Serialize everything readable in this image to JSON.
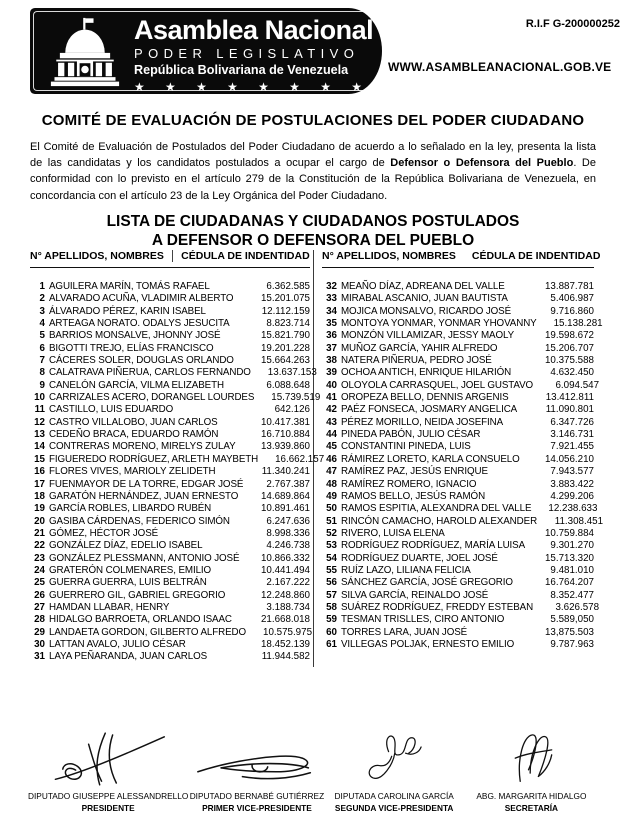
{
  "colors": {
    "banner_bg": "#0a0a0a",
    "banner_text": "#ffffff",
    "text": "#000000"
  },
  "icons": {
    "capitol": "capitol-building",
    "star_glyph": "★",
    "flag_glyph": "⚑"
  },
  "header": {
    "org_name": "Asamblea Nacional",
    "org_subtitle": "PODER LEGISLATIVO",
    "org_country": "República Bolivariana de Venezuela",
    "stars": "★★★★★★★★",
    "rif": "R.I.F G-200000252",
    "website": "WWW.ASAMBLEANACIONAL.GOB.VE"
  },
  "title": "COMITÉ DE EVALUACIÓN DE POSTULACIONES DEL PODER CIUDADANO",
  "intro": {
    "part1": "El Comité de Evaluación de Postulados del Poder Ciudadano de acuerdo a lo señalado en la ley, presenta la lista de las candidatas y los candidatos postulados a ocupar el cargo de ",
    "bold": "Defensor o Defensora del Pueblo",
    "part2": ". De conformidad con lo previsto en el artículo 279 de la Constitución de la República Bolivariana de Venezuela, en concordancia con el artículo 23 de la Ley Orgánica del Poder Ciudadano."
  },
  "list_title": {
    "line1": "LISTA DE CIUDADANAS Y CIUDADANOS POSTULADOS",
    "line2": "A DEFENSOR O DEFENSORA DEL PUEBLO"
  },
  "table": {
    "col_name_header": "N° APELLIDOS, NOMBRES",
    "col_id_header": "CÉDULA DE INDENTIDAD",
    "left_rows": [
      {
        "num": "1",
        "name": "AGUILERA MARÍN, TOMÁS RAFAEL",
        "id": "6.362.585"
      },
      {
        "num": "2",
        "name": "ALVARADO ACUÑA, VLADIMIR ALBERTO",
        "id": "15.201.075"
      },
      {
        "num": "3",
        "name": "ÁLVARADO PÉREZ, KARIN ISABEL",
        "id": "12.112.159"
      },
      {
        "num": "4",
        "name": "ARTEAGA NORATO. ODALYS JESUCITA",
        "id": "8.823.714"
      },
      {
        "num": "5",
        "name": "BARRIOS MONSALVE, JHONNY JOSÉ",
        "id": "15.821.790"
      },
      {
        "num": "6",
        "name": "BIGOTTI TREJO, ELÍAS FRANCISCO",
        "id": "19.201.228"
      },
      {
        "num": "7",
        "name": "CÁCERES SOLER, DOUGLAS ORLANDO",
        "id": "15.664.263"
      },
      {
        "num": "8",
        "name": "CALATRAVA PIÑERUA, CARLOS FERNANDO",
        "id": "13.637.153"
      },
      {
        "num": "9",
        "name": "CANELÓN GARCÍA, VILMA ELIZABETH",
        "id": "6.088.648"
      },
      {
        "num": "10",
        "name": "CARRIZALES ACERO, DORANGEL LOURDES",
        "id": "15.739.519"
      },
      {
        "num": "11",
        "name": "CASTILLO, LUIS EDUARDO",
        "id": "642.126"
      },
      {
        "num": "12",
        "name": "CASTRO VILLALOBO, JUAN CARLOS",
        "id": "10.417.381"
      },
      {
        "num": "13",
        "name": "CEDEÑO BRACA, EDUARDO RAMÓN",
        "id": "16.710.884"
      },
      {
        "num": "14",
        "name": "CONTRERAS MORENO, MIRELYS ZULAY",
        "id": "13.939.860"
      },
      {
        "num": "15",
        "name": "FIGUEREDO RODRÍGUEZ, ARLETH MAYBETH",
        "id": "16.662.157"
      },
      {
        "num": "16",
        "name": "FLORES VIVES, MARIOLY ZELIDETH",
        "id": "11.340.241"
      },
      {
        "num": "17",
        "name": "FUENMAYOR DE LA TORRE, EDGAR JOSÉ",
        "id": "2.767.387"
      },
      {
        "num": "18",
        "name": "GARATÓN HERNÁNDEZ, JUAN ERNESTO",
        "id": "14.689.864"
      },
      {
        "num": "19",
        "name": "GARCÍA ROBLES, LIBARDO RUBÉN",
        "id": "10.891.461"
      },
      {
        "num": "20",
        "name": "GASIBA CÁRDENAS, FEDERICO SIMÓN",
        "id": "6.247.636"
      },
      {
        "num": "21",
        "name": "GÓMEZ, HÉCTOR JOSÉ",
        "id": "8.998.336"
      },
      {
        "num": "22",
        "name": "GONZÁLEZ DÍAZ, EDELIO ISABEL",
        "id": "4.246.738"
      },
      {
        "num": "23",
        "name": "GONZÁLEZ PLESSMANN, ANTONIO JOSÉ",
        "id": "10.866.332"
      },
      {
        "num": "24",
        "name": "GRATERÓN COLMENARES, EMILIO",
        "id": "10.441.494"
      },
      {
        "num": "25",
        "name": "GUERRA GUERRA, LUIS BELTRÁN",
        "id": "2.167.222"
      },
      {
        "num": "26",
        "name": "GUERRERO GIL, GABRIEL GREGORIO",
        "id": "12.248.860"
      },
      {
        "num": "27",
        "name": "HAMDAN LLABAR, HENRY",
        "id": "3.188.734"
      },
      {
        "num": "28",
        "name": "HIDALGO BARROETA, ORLANDO ISAAC",
        "id": "21.668.018"
      },
      {
        "num": "29",
        "name": "LANDAETA GORDON, GILBERTO ALFREDO",
        "id": "10.575.975"
      },
      {
        "num": "30",
        "name": "LATTAN AVALO, JULIO CÉSAR",
        "id": "18.452.139"
      },
      {
        "num": "31",
        "name": "LAYA PEÑARANDA, JUAN CARLOS",
        "id": "11.944.582"
      }
    ],
    "right_rows": [
      {
        "num": "32",
        "name": "MEAÑO DÍAZ, ADREANA DEL VALLE",
        "id": "13.887.781"
      },
      {
        "num": "33",
        "name": "MIRABAL ASCANIO, JUAN BAUTISTA",
        "id": "5.406.987"
      },
      {
        "num": "34",
        "name": "MOJICA MONSALVO, RICARDO JOSÉ",
        "id": "9.716.860"
      },
      {
        "num": "35",
        "name": "MONTOYA YONMAR, YONMAR YHOVANNY",
        "id": "15.138.281"
      },
      {
        "num": "36",
        "name": "MONZÓN VILLAMIZAR, JESSY MAOLY",
        "id": "19.598.672"
      },
      {
        "num": "37",
        "name": "MUÑOZ GARCÍA, YAHIR ALFREDO",
        "id": "15.206.707"
      },
      {
        "num": "38",
        "name": "NATERA PIÑERUA, PEDRO JOSÉ",
        "id": "10.375.588"
      },
      {
        "num": "39",
        "name": "OCHOA ANTICH, ENRIQUE HILARIÓN",
        "id": "4.632.450"
      },
      {
        "num": "40",
        "name": "OLOYOLA CARRASQUEL, JOEL GUSTAVO",
        "id": "6.094.547"
      },
      {
        "num": "41",
        "name": "OROPEZA BELLO, DENNIS ARGENIS",
        "id": "13.412.811"
      },
      {
        "num": "42",
        "name": "PAÉZ FONSECA, JOSMARY ANGELICA",
        "id": "11.090.801"
      },
      {
        "num": "43",
        "name": "PÉREZ MORILLO, NEIDA JOSEFINA",
        "id": "6.347.726"
      },
      {
        "num": "44",
        "name": "PINEDA PABÓN, JULIO CÉSAR",
        "id": "3.146.731"
      },
      {
        "num": "45",
        "name": "CONSTANTINI PINEDA, LUIS",
        "id": "7.921.455"
      },
      {
        "num": "46",
        "name": "RÁMIREZ LORETO, KARLA CONSUELO",
        "id": "14.056.210"
      },
      {
        "num": "47",
        "name": "RAMÍREZ PAZ, JESÚS ENRIQUE",
        "id": "7.943.577"
      },
      {
        "num": "48",
        "name": "RAMÍREZ ROMERO, IGNACIO",
        "id": "3.883.422"
      },
      {
        "num": "49",
        "name": "RAMOS BELLO, JESÚS RAMÓN",
        "id": "4.299.206"
      },
      {
        "num": "50",
        "name": "RAMOS ESPITIA, ALEXANDRA DEL VALLE",
        "id": "12.238.633"
      },
      {
        "num": "51",
        "name": "RINCÓN CAMACHO, HAROLD ALEXANDER",
        "id": "11.308.451"
      },
      {
        "num": "52",
        "name": "RIVERO, LUISA ELENA",
        "id": "10.759.884"
      },
      {
        "num": "53",
        "name": "RODRÍGUEZ RODRÍGUEZ, MARÍA LUISA",
        "id": "9.301.270"
      },
      {
        "num": "54",
        "name": "RODRÍGUEZ DUARTE, JOEL JOSÉ",
        "id": "15.713.320"
      },
      {
        "num": "55",
        "name": "RUÍZ LAZO, LILIANA FELICIA",
        "id": "9.481.010"
      },
      {
        "num": "56",
        "name": "SÁNCHEZ GARCÍA, JOSÉ GREGORIO",
        "id": "16.764.207"
      },
      {
        "num": "57",
        "name": "SILVA GARCÍA, REINALDO JOSÉ",
        "id": "8.352.477"
      },
      {
        "num": "58",
        "name": "SUÁREZ RODRÍGUEZ, FREDDY ESTEBAN",
        "id": "3.626.578"
      },
      {
        "num": "59",
        "name": "TESMAN TRISLLES, CIRO ANTONIO",
        "id": "5.589,050"
      },
      {
        "num": "60",
        "name": "TORRES LARA, JUAN JOSÉ",
        "id": "13,875.503"
      },
      {
        "num": "61",
        "name": "VILLEGAS POLJAK, ERNESTO EMILIO",
        "id": "9.787.963"
      }
    ]
  },
  "signatories": [
    {
      "name": "DIPUTADO GIUSEPPE ALESSANDRELLO",
      "role": "PRESIDENTE"
    },
    {
      "name": "DIPUTADO BERNABÉ GUTIÉRREZ",
      "role": "PRIMER VICE-PRESIDENTE"
    },
    {
      "name": "DIPUTADA CAROLINA GARCÍA",
      "role": "SEGUNDA VICE-PRESIDENTA"
    },
    {
      "name": "ABG. MARGARITA HIDALGO",
      "role": "SECRETARÍA"
    }
  ]
}
